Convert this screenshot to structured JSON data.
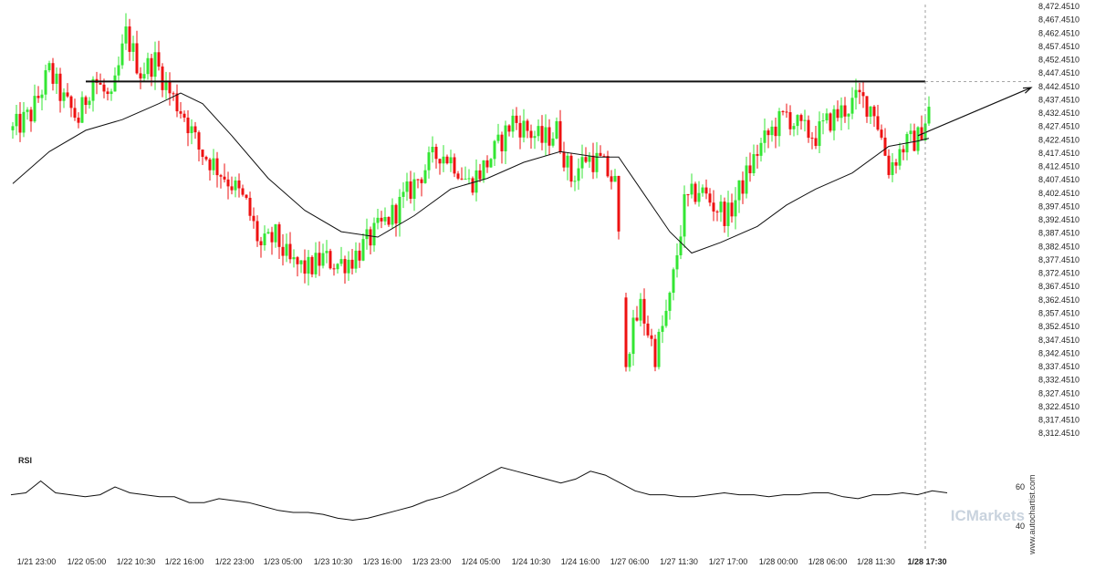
{
  "chart_data": {
    "type": "candlestick",
    "y_axis": {
      "ticks": [
        "8,472.4510",
        "8,467.4510",
        "8,462.4510",
        "8,457.4510",
        "8,452.4510",
        "8,447.4510",
        "8,442.4510",
        "8,437.4510",
        "8,432.4510",
        "8,427.4510",
        "8,422.4510",
        "8,417.4510",
        "8,412.4510",
        "8,407.4510",
        "8,402.4510",
        "8,397.4510",
        "8,392.4510",
        "8,387.4510",
        "8,382.4510",
        "8,377.4510",
        "8,372.4510",
        "8,367.4510",
        "8,362.4510",
        "8,357.4510",
        "8,352.4510",
        "8,347.4510",
        "8,342.4510",
        "8,337.4510",
        "8,332.4510",
        "8,327.4510",
        "8,322.4510",
        "8,317.4510",
        "8,312.4510"
      ],
      "range": [
        8311,
        8474
      ],
      "position": "right"
    },
    "x_axis": {
      "labels": [
        "1/21 23:00",
        "1/22 05:00",
        "1/22 10:30",
        "1/22 16:00",
        "1/22 23:00",
        "1/23 05:00",
        "1/23 10:30",
        "1/23 16:00",
        "1/23 23:00",
        "1/24 05:00",
        "1/24 10:30",
        "1/24 16:00",
        "1/27 06:00",
        "1/27 11:30",
        "1/27 17:00",
        "1/28 00:00",
        "1/28 06:00",
        "1/28 11:30",
        "1/28 17:30"
      ],
      "last_label_bold": true
    },
    "close_path": [
      [
        0,
        8426
      ],
      [
        5,
        8432
      ],
      [
        10,
        8448
      ],
      [
        14,
        8437
      ],
      [
        18,
        8430
      ],
      [
        22,
        8446
      ],
      [
        27,
        8436
      ],
      [
        31,
        8462
      ],
      [
        35,
        8448
      ],
      [
        39,
        8452
      ],
      [
        43,
        8440
      ],
      [
        47,
        8432
      ],
      [
        51,
        8419
      ],
      [
        56,
        8412
      ],
      [
        60,
        8406
      ],
      [
        64,
        8398
      ],
      [
        68,
        8382
      ],
      [
        72,
        8386
      ],
      [
        76,
        8376
      ],
      [
        81,
        8374
      ],
      [
        85,
        8378
      ],
      [
        89,
        8376
      ],
      [
        93,
        8378
      ],
      [
        97,
        8384
      ],
      [
        101,
        8390
      ],
      [
        105,
        8396
      ],
      [
        109,
        8404
      ],
      [
        113,
        8412
      ],
      [
        117,
        8418
      ],
      [
        121,
        8414
      ],
      [
        125,
        8406
      ],
      [
        129,
        8412
      ],
      [
        133,
        8420
      ],
      [
        137,
        8430
      ],
      [
        141,
        8426
      ],
      [
        145,
        8422
      ],
      [
        149,
        8426
      ],
      [
        153,
        8408
      ],
      [
        157,
        8416
      ],
      [
        161,
        8414
      ],
      [
        165,
        8406
      ],
      [
        168,
        8342
      ],
      [
        172,
        8360
      ],
      [
        176,
        8342
      ],
      [
        180,
        8362
      ],
      [
        184,
        8398
      ],
      [
        188,
        8404
      ],
      [
        192,
        8398
      ],
      [
        196,
        8394
      ],
      [
        200,
        8406
      ],
      [
        204,
        8418
      ],
      [
        208,
        8426
      ],
      [
        212,
        8432
      ],
      [
        216,
        8426
      ],
      [
        220,
        8424
      ],
      [
        224,
        8430
      ],
      [
        228,
        8434
      ],
      [
        232,
        8438
      ],
      [
        236,
        8434
      ],
      [
        240,
        8412
      ],
      [
        244,
        8420
      ],
      [
        248,
        8423
      ],
      [
        251,
        8434
      ]
    ],
    "total_bars": 252,
    "moving_average": [
      [
        0,
        8406
      ],
      [
        10,
        8418
      ],
      [
        20,
        8426
      ],
      [
        30,
        8430
      ],
      [
        40,
        8436
      ],
      [
        46,
        8440
      ],
      [
        52,
        8436
      ],
      [
        60,
        8424
      ],
      [
        70,
        8408
      ],
      [
        80,
        8396
      ],
      [
        90,
        8388
      ],
      [
        100,
        8386
      ],
      [
        110,
        8394
      ],
      [
        120,
        8404
      ],
      [
        130,
        8408
      ],
      [
        140,
        8414
      ],
      [
        150,
        8418
      ],
      [
        160,
        8416
      ],
      [
        166,
        8416
      ],
      [
        172,
        8404
      ],
      [
        180,
        8388
      ],
      [
        186,
        8380
      ],
      [
        194,
        8384
      ],
      [
        204,
        8390
      ],
      [
        212,
        8398
      ],
      [
        220,
        8404
      ],
      [
        230,
        8410
      ],
      [
        240,
        8420
      ],
      [
        248,
        8422
      ],
      [
        251,
        8423
      ]
    ],
    "resistance_level": 8444.3,
    "resistance_from_bar": 20,
    "projection": {
      "from": [
        248,
        8424
      ],
      "to": [
        278,
        8442
      ]
    },
    "candle_colors": {
      "up": "#33e633",
      "down": "#ee1111"
    },
    "rsi": {
      "label": "RSI",
      "ticks": [
        60,
        40
      ],
      "range": [
        30,
        80
      ],
      "values": [
        56,
        57,
        63,
        57,
        56,
        55,
        56,
        60,
        57,
        56,
        55,
        55,
        52,
        52,
        54,
        53,
        52,
        50,
        48,
        47,
        47,
        46,
        44,
        43,
        44,
        46,
        48,
        50,
        53,
        55,
        58,
        62,
        66,
        70,
        68,
        66,
        64,
        62,
        64,
        68,
        66,
        62,
        58,
        56,
        56,
        55,
        55,
        56,
        57,
        56,
        56,
        55,
        56,
        56,
        57,
        57,
        55,
        54,
        56,
        56,
        57,
        56,
        58,
        57
      ]
    }
  },
  "watermark": {
    "site": "www.autochartist.com",
    "brand": "ICMarkets"
  },
  "colors": {
    "candle_up": "#33e633",
    "candle_down": "#ee1111",
    "line": "#111111",
    "axis": "#888888",
    "brand": "#c9d3de"
  }
}
